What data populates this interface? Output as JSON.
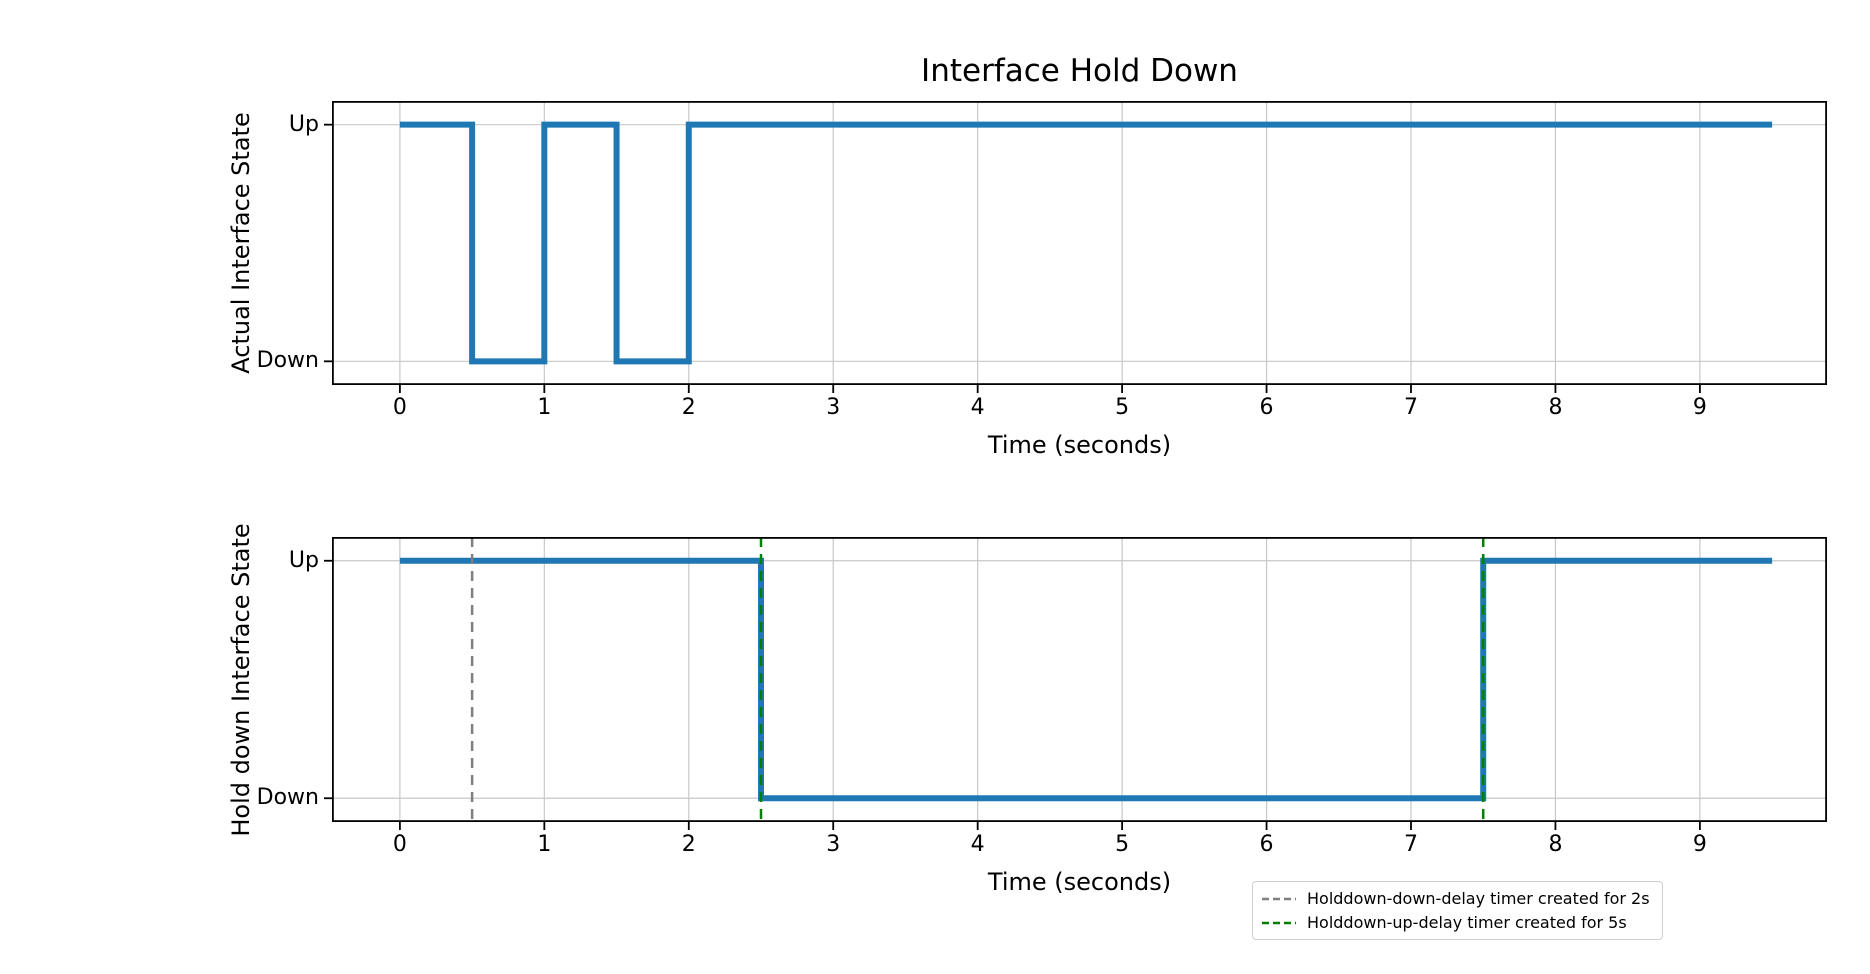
{
  "figure": {
    "background": "#ffffff"
  },
  "colors": {
    "series_blue": "#1f77b4",
    "grid": "#c8c8c8",
    "spine": "#000000",
    "tick": "#000000",
    "holddown_down_gray": "#7f7f7f",
    "holddown_up_green": "#008000",
    "legend_border": "#cfcfcf"
  },
  "chart_data": [
    {
      "type": "line",
      "subplot": "top",
      "title": "Interface Hold Down",
      "xlabel": "Time (seconds)",
      "ylabel": "Actual Interface State",
      "step": "post",
      "grid": true,
      "legend_position": "none",
      "xlim": [
        -0.47,
        9.88
      ],
      "ylim": [
        -0.1,
        1.1
      ],
      "x_ticks": [
        0,
        1,
        2,
        3,
        4,
        5,
        6,
        7,
        8,
        9
      ],
      "y_ticks": [
        {
          "value": 1,
          "label": "Up"
        },
        {
          "value": 0,
          "label": "Down"
        }
      ],
      "series": [
        {
          "name": "actual-interface-state",
          "color": "#1f77b4",
          "linewidth": 6,
          "points": [
            [
              0,
              1
            ],
            [
              0.5,
              0
            ],
            [
              1,
              1
            ],
            [
              1.5,
              0
            ],
            [
              2,
              1
            ],
            [
              9.5,
              1
            ]
          ]
        }
      ],
      "vlines": []
    },
    {
      "type": "line",
      "subplot": "bottom",
      "title": "",
      "xlabel": "Time (seconds)",
      "ylabel": "Hold down Interface State",
      "step": "post",
      "grid": true,
      "legend_position": "below-right",
      "xlim": [
        -0.47,
        9.88
      ],
      "ylim": [
        -0.1,
        1.1
      ],
      "x_ticks": [
        0,
        1,
        2,
        3,
        4,
        5,
        6,
        7,
        8,
        9
      ],
      "y_ticks": [
        {
          "value": 1,
          "label": "Up"
        },
        {
          "value": 0,
          "label": "Down"
        }
      ],
      "series": [
        {
          "name": "holddown-interface-state",
          "color": "#1f77b4",
          "linewidth": 6,
          "points": [
            [
              0,
              1
            ],
            [
              2.5,
              0
            ],
            [
              7.5,
              1
            ],
            [
              9.5,
              1
            ]
          ]
        }
      ],
      "vlines": [
        {
          "x": 0.5,
          "color": "#7f7f7f",
          "series": "holddown-down-delay-timer"
        },
        {
          "x": 2.5,
          "color": "#008000",
          "series": "holddown-up-delay-timer"
        },
        {
          "x": 7.5,
          "color": "#008000",
          "series": "holddown-up-delay-timer"
        }
      ],
      "legend": {
        "entries": [
          {
            "label": "Holddown-down-delay timer created for 2s",
            "color": "#7f7f7f",
            "linestyle": "dashed"
          },
          {
            "label": "Holddown-up-delay timer created for 5s",
            "color": "#008000",
            "linestyle": "dashed"
          }
        ]
      }
    }
  ]
}
